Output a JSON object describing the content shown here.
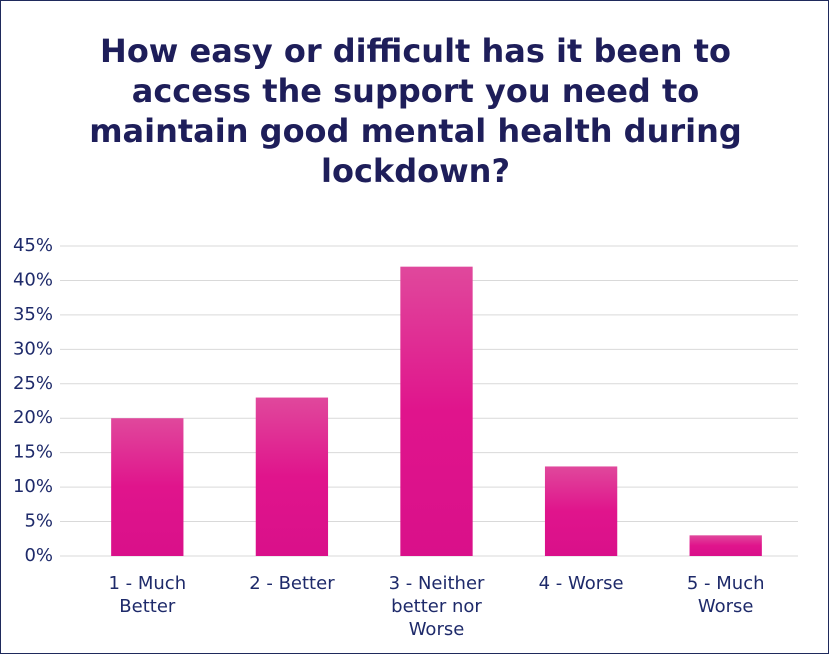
{
  "chart_data": {
    "type": "bar",
    "title": "How easy or difficult has it been to access the support you need to maintain good mental health during lockdown?",
    "categories": [
      "1 - Much Better",
      "2 - Better",
      "3 - Neither better nor Worse",
      "4 - Worse",
      "5 - Much Worse"
    ],
    "values": [
      20,
      23,
      42,
      13,
      3
    ],
    "color": "#e0148c",
    "ylim": [
      0,
      45
    ],
    "yticks": [
      {
        "value": 0,
        "label": "0%"
      },
      {
        "value": 5,
        "label": "5%"
      },
      {
        "value": 10,
        "label": "10%"
      },
      {
        "value": 15,
        "label": "15%"
      },
      {
        "value": 20,
        "label": "20%"
      },
      {
        "value": 25,
        "label": "25%"
      },
      {
        "value": 30,
        "label": "30%"
      },
      {
        "value": 35,
        "label": "35%"
      },
      {
        "value": 40,
        "label": "40%"
      },
      {
        "value": 45,
        "label": "45%"
      }
    ],
    "grid": true
  }
}
